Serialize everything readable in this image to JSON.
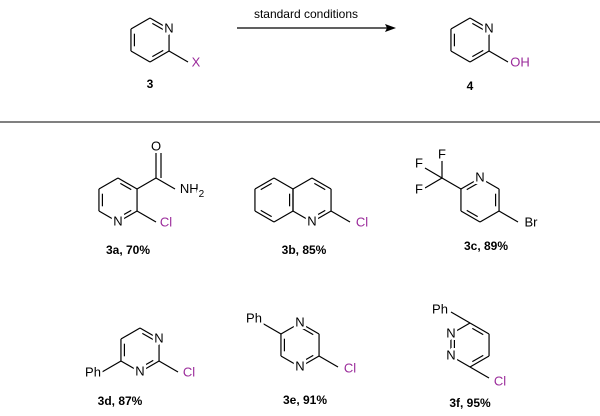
{
  "scheme": {
    "reactant": {
      "label": "3",
      "atoms": [
        "N",
        "X"
      ]
    },
    "conditions": "standard conditions",
    "product": {
      "label": "4",
      "atoms": [
        "N",
        "OH"
      ]
    }
  },
  "substrates": [
    {
      "label": "3a, 70%",
      "atoms": [
        "O",
        "NH",
        "2",
        "N",
        "Cl"
      ]
    },
    {
      "label": "3b, 85%",
      "atoms": [
        "N",
        "Cl"
      ]
    },
    {
      "label": "3c, 89%",
      "atoms": [
        "F",
        "F",
        "F",
        "N",
        "Br"
      ]
    },
    {
      "label": "3d, 87%",
      "atoms": [
        "N",
        "N",
        "Ph",
        "Cl"
      ]
    },
    {
      "label": "3e, 91%",
      "atoms": [
        "N",
        "N",
        "Ph",
        "Cl"
      ]
    },
    {
      "label": "3f, 95%",
      "atoms": [
        "N",
        "N",
        "Ph",
        "Cl"
      ]
    }
  ]
}
